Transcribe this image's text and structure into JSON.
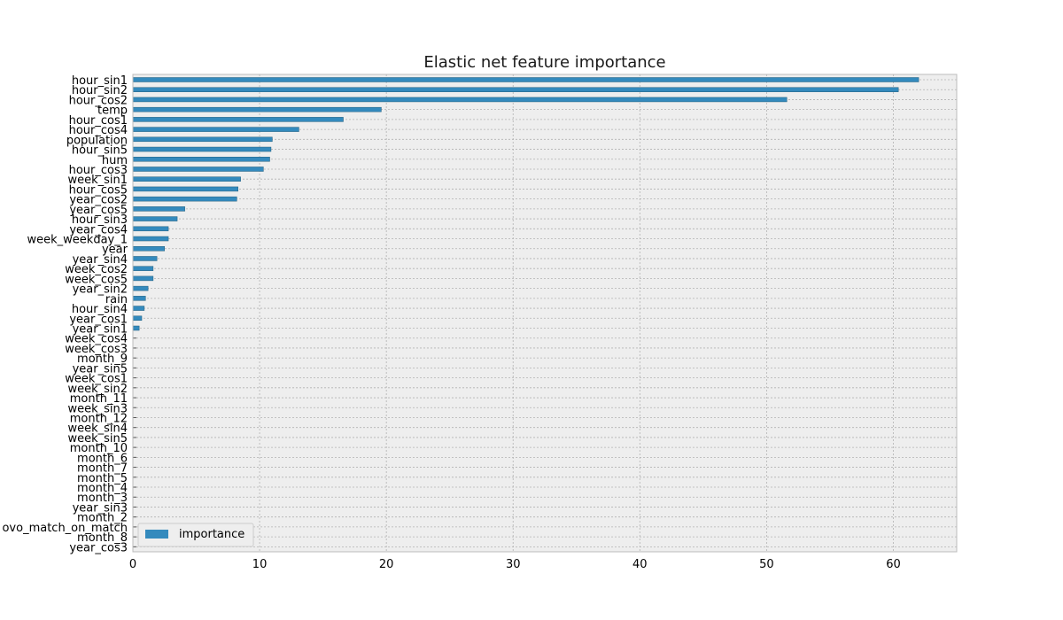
{
  "chart_data": {
    "type": "bar",
    "orientation": "horizontal",
    "title": "Elastic net feature importance",
    "xlabel": "",
    "ylabel": "",
    "xlim": [
      0,
      65
    ],
    "xticks": [
      0,
      10,
      20,
      30,
      40,
      50,
      60
    ],
    "grid": true,
    "legend_position": "lower-left",
    "colors": {
      "bar": "#348abd",
      "bar_edge": "#24607f",
      "plot_bg": "#eeeeee",
      "grid": "#b2b2b2",
      "axes_edge": "#bcbcbc"
    },
    "series": [
      {
        "name": "importance"
      }
    ],
    "categories": [
      "hour_sin1",
      "hour_sin2",
      "hour_cos2",
      "temp",
      "hour_cos1",
      "hour_cos4",
      "population",
      "hour_sin5",
      "hum",
      "hour_cos3",
      "week_sin1",
      "hour_cos5",
      "year_cos2",
      "year_cos5",
      "hour_sin3",
      "year_cos4",
      "week_weekday_1",
      "year",
      "year_sin4",
      "week_cos2",
      "week_cos5",
      "year_sin2",
      "rain",
      "hour_sin4",
      "year_cos1",
      "year_sin1",
      "week_cos4",
      "week_cos3",
      "month_9",
      "year_sin5",
      "week_cos1",
      "week_sin2",
      "month_11",
      "week_sin3",
      "month_12",
      "week_sin4",
      "week_sin5",
      "month_10",
      "month_6",
      "month_7",
      "month_5",
      "month_4",
      "month_3",
      "year_sin3",
      "month_2",
      "ovo_match_on_match",
      "month_8",
      "year_cos3"
    ],
    "values": [
      62.0,
      60.4,
      51.6,
      19.6,
      16.6,
      13.1,
      11.0,
      10.9,
      10.8,
      10.3,
      8.5,
      8.3,
      8.2,
      4.1,
      3.5,
      2.8,
      2.8,
      2.5,
      1.9,
      1.6,
      1.6,
      1.2,
      1.0,
      0.9,
      0.7,
      0.5,
      0,
      0,
      0,
      0,
      0,
      0,
      0,
      0,
      0,
      0,
      0,
      0,
      0,
      0,
      0,
      0,
      0,
      0,
      0,
      0,
      0,
      0
    ]
  }
}
